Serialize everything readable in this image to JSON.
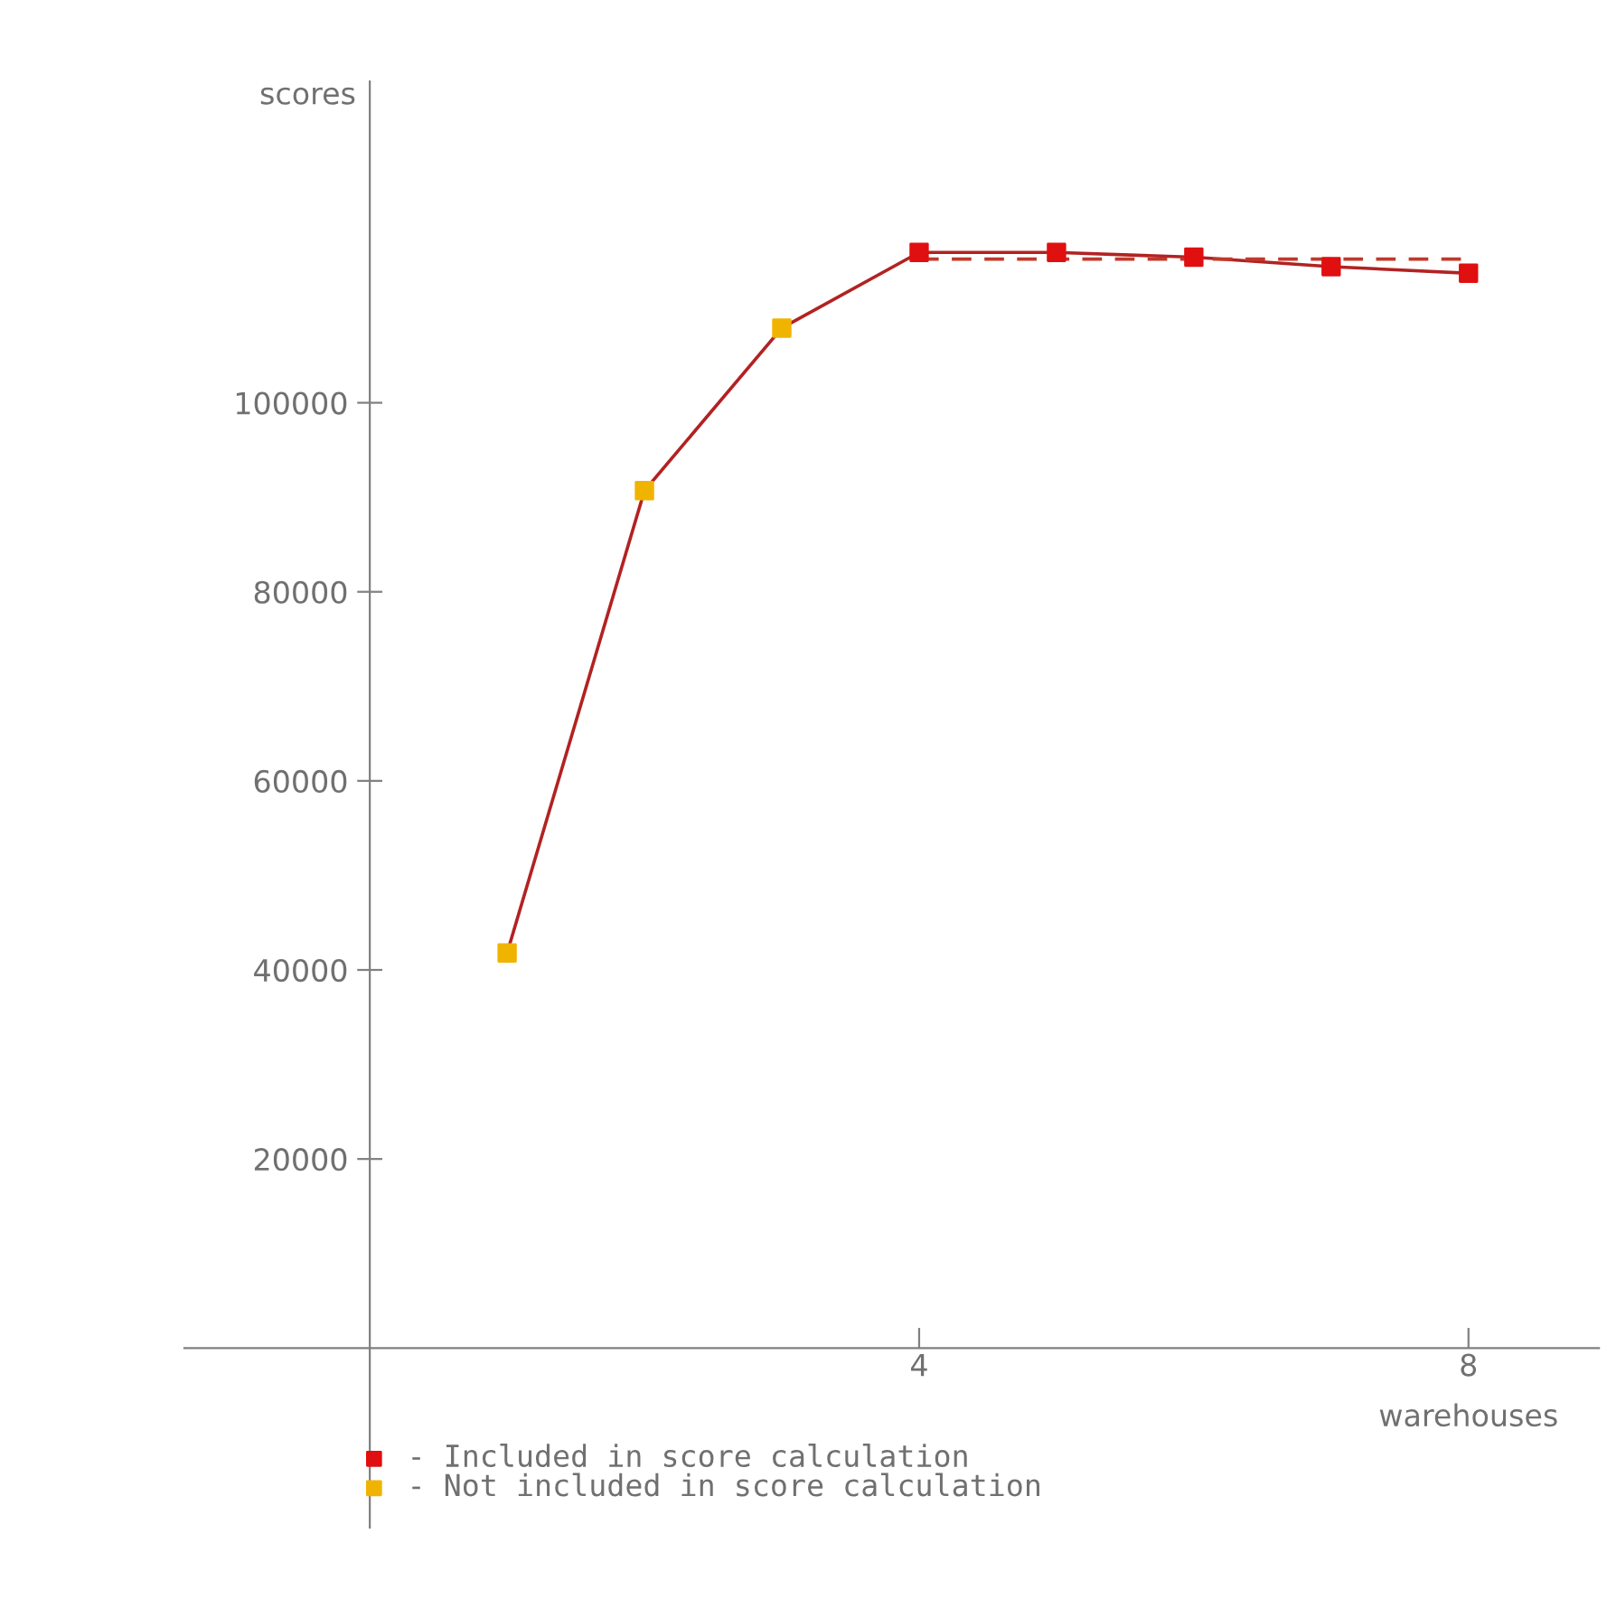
{
  "chart_data": {
    "type": "line",
    "xlabel": "warehouses",
    "ylabel": "scores",
    "xlim": [
      -1.35,
      8.95
    ],
    "ylim": [
      -19000,
      134000
    ],
    "xticks": [
      4,
      8
    ],
    "yticks": [
      20000,
      40000,
      60000,
      80000,
      100000
    ],
    "grid": false,
    "legend": "bottom",
    "series": [
      {
        "color": "#b22222",
        "x": [
          1,
          2,
          3,
          4,
          5,
          6,
          7,
          8
        ],
        "values": [
          41800,
          90700,
          107900,
          115900,
          115900,
          115400,
          114400,
          113700
        ],
        "marker": "none",
        "line_style": "solid"
      },
      {
        "color": "#c0392b",
        "x": [
          4,
          8
        ],
        "values": [
          115200,
          115200
        ],
        "marker": "none",
        "line_style": "dashed"
      },
      {
        "type": "scatter",
        "name": "- Included in score calculation",
        "color": "#e01010",
        "x": [
          4,
          5,
          6,
          7,
          8
        ],
        "values": [
          115900,
          115900,
          115400,
          114400,
          113700
        ],
        "marker": "square"
      },
      {
        "type": "scatter",
        "name": "- Not included in score calculation",
        "color": "#f0b400",
        "x": [
          1,
          2,
          3
        ],
        "values": [
          41800,
          90700,
          107900
        ],
        "marker": "square"
      }
    ]
  }
}
